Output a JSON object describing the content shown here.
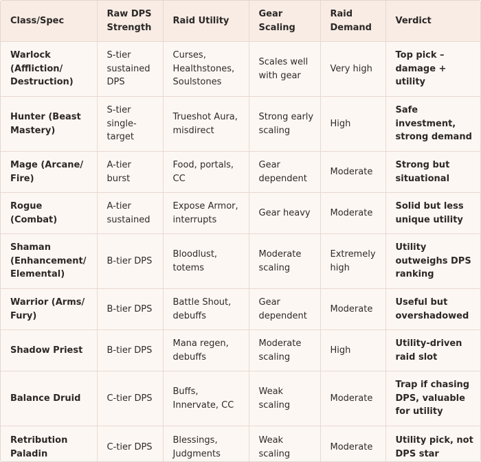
{
  "headers": [
    "Class/Spec",
    "Raw DPS Strength",
    "Raid Utility",
    "Gear Scaling",
    "Raid Demand",
    "Verdict"
  ],
  "rows": [
    {
      "spec": "Warlock (Affliction/ Destruction)",
      "dps": "S-tier sustained DPS",
      "utility": "Curses, Healthstones, Soulstones",
      "gear": "Scales well with gear",
      "demand": "Very high",
      "verdict": "Top pick – damage + utility"
    },
    {
      "spec": "Hunter (Beast Mastery)",
      "dps": "S-tier single-target",
      "utility": "Trueshot Aura, misdirect",
      "gear": "Strong early scaling",
      "demand": "High",
      "verdict": "Safe investment, strong demand"
    },
    {
      "spec": "Mage (Arcane/ Fire)",
      "dps": "A-tier burst",
      "utility": "Food, portals, CC",
      "gear": "Gear dependent",
      "demand": "Moderate",
      "verdict": "Strong but situational"
    },
    {
      "spec": "Rogue (Combat)",
      "dps": "A-tier sustained",
      "utility": "Expose Armor, interrupts",
      "gear": "Gear heavy",
      "demand": "Moderate",
      "verdict": "Solid but less unique utility"
    },
    {
      "spec": "Shaman (Enhancement/ Elemental)",
      "dps": "B-tier DPS",
      "utility": "Bloodlust, totems",
      "gear": "Moderate scaling",
      "demand": "Extremely high",
      "verdict": "Utility outweighs DPS ranking"
    },
    {
      "spec": "Warrior (Arms/ Fury)",
      "dps": "B-tier DPS",
      "utility": "Battle Shout, debuffs",
      "gear": "Gear dependent",
      "demand": "Moderate",
      "verdict": "Useful but overshadowed"
    },
    {
      "spec": "Shadow Priest",
      "dps": "B-tier DPS",
      "utility": "Mana regen, debuffs",
      "gear": "Moderate scaling",
      "demand": "High",
      "verdict": "Utility-driven raid slot"
    },
    {
      "spec": "Balance Druid",
      "dps": "C-tier DPS",
      "utility": "Buffs, Innervate, CC",
      "gear": "Weak scaling",
      "demand": "Moderate",
      "verdict": "Trap if chasing DPS, valuable for utility"
    },
    {
      "spec": "Retribution Paladin",
      "dps": "C-tier DPS",
      "utility": "Blessings, Judgments",
      "gear": "Weak scaling",
      "demand": "Moderate",
      "verdict": "Utility pick, not DPS star"
    }
  ]
}
